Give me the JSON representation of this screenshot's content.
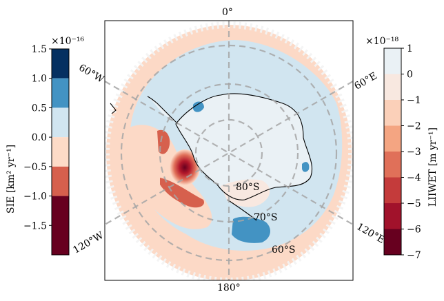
{
  "map": {
    "top_label": "0°",
    "bottom_label": "180°",
    "graticule_labels": {
      "w60": "60°W",
      "e60": "60°E",
      "w120": "120°W",
      "e120": "120°E",
      "s80": "80°S",
      "s70": "70°S",
      "s60": "60°S"
    }
  },
  "left_colorbar": {
    "label": "SIE [km² yr⁻¹]",
    "exponent": "×10⁻¹⁶",
    "ticks": [
      "1.5",
      "1.0",
      "0.5",
      "0.0",
      "−0.5",
      "−1.0",
      "−1.5"
    ],
    "colors": [
      "#053061",
      "#4393c3",
      "#d1e5f0",
      "#fddbc7",
      "#d6604d",
      "#67001f"
    ]
  },
  "right_colorbar": {
    "label": "LIIWET [m yr⁻¹]",
    "exponent": "×10⁻¹⁸",
    "ticks": [
      "1",
      "0",
      "−1",
      "−2",
      "−3",
      "−4",
      "−5",
      "−6",
      "−7"
    ],
    "colors": [
      "#eaf1f5",
      "#f8e8e0",
      "#fbd0b9",
      "#f4a582",
      "#e07059",
      "#c43b3b",
      "#a1122b",
      "#67001f"
    ]
  }
}
